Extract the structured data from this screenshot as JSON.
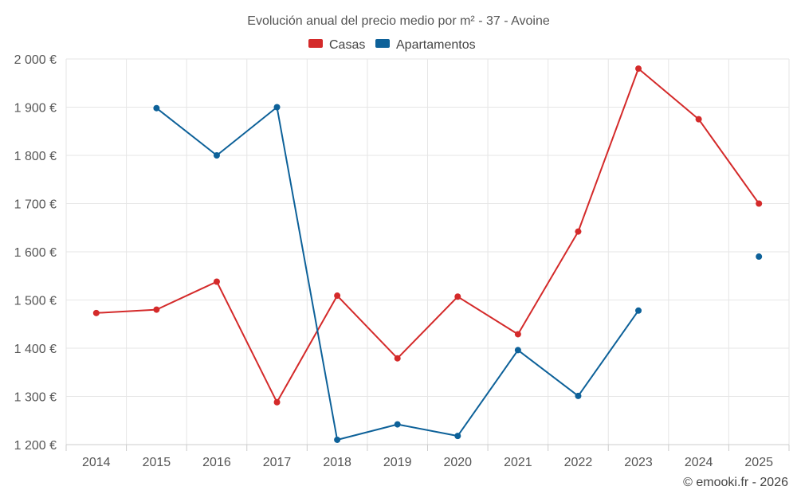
{
  "chart_data": {
    "type": "line",
    "title": "Evolución anual del precio medio por m² - 37 - Avoine",
    "categories": [
      "2014",
      "2015",
      "2016",
      "2017",
      "2018",
      "2019",
      "2020",
      "2021",
      "2022",
      "2023",
      "2024",
      "2025"
    ],
    "ylim": [
      1200,
      2000
    ],
    "yticks": [
      1200,
      1300,
      1400,
      1500,
      1600,
      1700,
      1800,
      1900,
      2000
    ],
    "ytick_labels": [
      "1 200 €",
      "1 300 €",
      "1 400 €",
      "1 500 €",
      "1 600 €",
      "1 700 €",
      "1 800 €",
      "1 900 €",
      "2 000 €"
    ],
    "grid": true,
    "legend_position": "top-center",
    "series": [
      {
        "name": "Casas",
        "color": "#d42a2a",
        "values": [
          1473,
          1480,
          1538,
          1288,
          1509,
          1379,
          1507,
          1429,
          1642,
          1980,
          1875,
          1700
        ]
      },
      {
        "name": "Apartamentos",
        "color": "#0d6199",
        "values": [
          null,
          1898,
          1800,
          1900,
          1210,
          1242,
          1218,
          1396,
          1301,
          1478,
          null,
          1590
        ]
      }
    ],
    "credit": "© emooki.fr - 2026"
  }
}
